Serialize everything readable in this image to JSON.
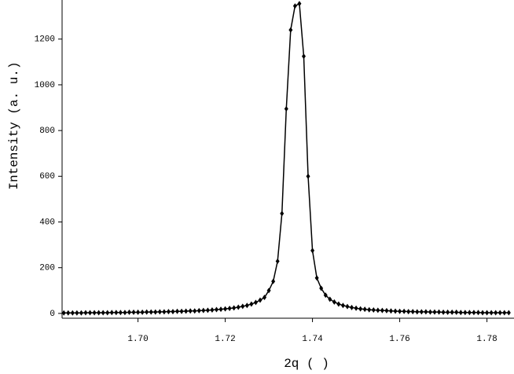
{
  "chart_data": {
    "type": "line",
    "xlabel": "2q ( )",
    "ylabel": "Intensity (a. u.)",
    "xlim": [
      1.6826,
      1.7862
    ],
    "ylim": [
      -21,
      1371
    ],
    "xticks": [
      {
        "value": 1.7,
        "label": "1.70"
      },
      {
        "value": 1.72,
        "label": "1.72"
      },
      {
        "value": 1.74,
        "label": "1.74"
      },
      {
        "value": 1.76,
        "label": "1.76"
      },
      {
        "value": 1.78,
        "label": "1.78"
      }
    ],
    "yticks": [
      0,
      200,
      400,
      600,
      800,
      1000,
      1200
    ],
    "x": [
      1.683,
      1.684,
      1.685,
      1.686,
      1.687,
      1.688,
      1.689,
      1.69,
      1.691,
      1.692,
      1.693,
      1.694,
      1.695,
      1.696,
      1.697,
      1.698,
      1.699,
      1.7,
      1.701,
      1.702,
      1.703,
      1.704,
      1.705,
      1.706,
      1.707,
      1.708,
      1.709,
      1.71,
      1.711,
      1.712,
      1.713,
      1.714,
      1.715,
      1.716,
      1.717,
      1.718,
      1.719,
      1.72,
      1.721,
      1.722,
      1.723,
      1.724,
      1.725,
      1.726,
      1.727,
      1.728,
      1.729,
      1.73,
      1.731,
      1.732,
      1.733,
      1.734,
      1.735,
      1.736,
      1.737,
      1.738,
      1.739,
      1.74,
      1.741,
      1.742,
      1.743,
      1.744,
      1.745,
      1.746,
      1.747,
      1.748,
      1.749,
      1.75,
      1.751,
      1.752,
      1.753,
      1.754,
      1.755,
      1.756,
      1.757,
      1.758,
      1.759,
      1.76,
      1.761,
      1.762,
      1.763,
      1.764,
      1.765,
      1.766,
      1.767,
      1.768,
      1.769,
      1.77,
      1.771,
      1.772,
      1.773,
      1.774,
      1.775,
      1.776,
      1.777,
      1.778,
      1.779,
      1.78,
      1.781,
      1.782,
      1.783,
      1.784,
      1.785
    ],
    "series": [
      {
        "color": "#000000",
        "values": [
          2,
          2,
          2,
          2,
          2,
          3,
          3,
          3,
          3,
          3,
          3,
          4,
          4,
          4,
          4,
          5,
          5,
          5,
          5,
          6,
          6,
          6,
          7,
          7,
          8,
          8,
          9,
          9,
          10,
          11,
          11,
          12,
          13,
          14,
          15,
          17,
          18,
          20,
          22,
          24,
          27,
          31,
          35,
          41,
          48,
          58,
          70,
          100,
          140,
          228,
          437,
          895,
          1240,
          1345,
          1355,
          1125,
          600,
          275,
          155,
          110,
          80,
          62,
          50,
          41,
          35,
          30,
          26,
          23,
          20,
          18,
          16,
          15,
          14,
          13,
          12,
          11,
          10,
          9,
          9,
          8,
          8,
          7,
          7,
          7,
          6,
          6,
          6,
          5,
          5,
          5,
          5,
          4,
          4,
          4,
          4,
          4,
          3,
          3,
          3,
          3,
          3,
          3,
          3
        ]
      }
    ]
  }
}
